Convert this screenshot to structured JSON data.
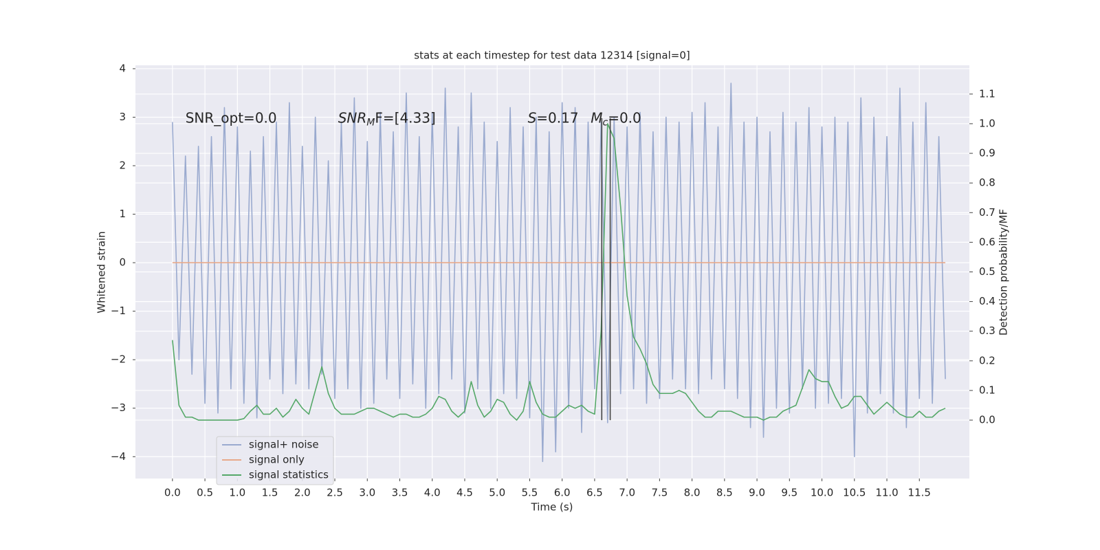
{
  "chart_data": {
    "type": "line",
    "title": "stats at each timestep for test data 12314 [signal=0]",
    "x_label": "Time (s)",
    "y_label": "Whitened strain",
    "y2_label": "Detection probability/MF",
    "grid": true,
    "legend": "lower left",
    "xlim": [
      -0.57,
      12.27
    ],
    "ylim": [
      -4.45,
      4.07
    ],
    "y2lim": [
      -0.197,
      1.197
    ],
    "xticks": [
      {
        "value": 0,
        "label": "0.0"
      },
      {
        "value": 0.5,
        "label": "0.5"
      },
      {
        "value": 1,
        "label": "1.0"
      },
      {
        "value": 1.5,
        "label": "1.5"
      },
      {
        "value": 2,
        "label": "2.0"
      },
      {
        "value": 2.5,
        "label": "2.5"
      },
      {
        "value": 3,
        "label": "3.0"
      },
      {
        "value": 3.5,
        "label": "3.5"
      },
      {
        "value": 4,
        "label": "4.0"
      },
      {
        "value": 4.5,
        "label": "4.5"
      },
      {
        "value": 5,
        "label": "5.0"
      },
      {
        "value": 5.5,
        "label": "5.5"
      },
      {
        "value": 6,
        "label": "6.0"
      },
      {
        "value": 6.5,
        "label": "6.5"
      },
      {
        "value": 7,
        "label": "7.0"
      },
      {
        "value": 7.5,
        "label": "7.5"
      },
      {
        "value": 8,
        "label": "8.0"
      },
      {
        "value": 8.5,
        "label": "8.5"
      },
      {
        "value": 9,
        "label": "9.0"
      },
      {
        "value": 9.5,
        "label": "9.5"
      },
      {
        "value": 10,
        "label": "10.0"
      },
      {
        "value": 10.5,
        "label": "10.5"
      },
      {
        "value": 11,
        "label": "11.0"
      },
      {
        "value": 11.5,
        "label": "11.5"
      }
    ],
    "yticks": [
      {
        "value": -4,
        "label": "−4"
      },
      {
        "value": -3,
        "label": "−3"
      },
      {
        "value": -2,
        "label": "−2"
      },
      {
        "value": -1,
        "label": "−1"
      },
      0,
      1,
      2,
      3,
      4
    ],
    "y2ticks": [
      {
        "value": 0,
        "label": "0.0"
      },
      {
        "value": 0.1,
        "label": "0.1"
      },
      {
        "value": 0.2,
        "label": "0.2"
      },
      {
        "value": 0.3,
        "label": "0.3"
      },
      {
        "value": 0.4,
        "label": "0.4"
      },
      {
        "value": 0.5,
        "label": "0.5"
      },
      {
        "value": 0.6,
        "label": "0.6"
      },
      {
        "value": 0.7,
        "label": "0.7"
      },
      {
        "value": 0.8,
        "label": "0.8"
      },
      {
        "value": 0.9,
        "label": "0.9"
      },
      {
        "value": 1.0,
        "label": "1.0"
      },
      {
        "value": 1.1,
        "label": "1.1"
      }
    ],
    "x": [
      0,
      0.1,
      0.2,
      0.3,
      0.4,
      0.5,
      0.6,
      0.7,
      0.8,
      0.9,
      1,
      1.1,
      1.2,
      1.3,
      1.4,
      1.5,
      1.6,
      1.7,
      1.8,
      1.9,
      2,
      2.1,
      2.2,
      2.3,
      2.4,
      2.5,
      2.6,
      2.7,
      2.8,
      2.9,
      3,
      3.1,
      3.2,
      3.3,
      3.4,
      3.5,
      3.6,
      3.7,
      3.8,
      3.9,
      4,
      4.1,
      4.2,
      4.3,
      4.4,
      4.5,
      4.6,
      4.7,
      4.8,
      4.9,
      5,
      5.1,
      5.2,
      5.3,
      5.4,
      5.5,
      5.6,
      5.7,
      5.8,
      5.9,
      6,
      6.1,
      6.2,
      6.3,
      6.4,
      6.5,
      6.6,
      6.7,
      6.8,
      6.9,
      7,
      7.1,
      7.2,
      7.3,
      7.4,
      7.5,
      7.6,
      7.7,
      7.8,
      7.9,
      8,
      8.1,
      8.2,
      8.3,
      8.4,
      8.5,
      8.6,
      8.7,
      8.8,
      8.9,
      9,
      9.1,
      9.2,
      9.3,
      9.4,
      9.5,
      9.6,
      9.7,
      9.8,
      9.9,
      10,
      10.1,
      10.2,
      10.3,
      10.4,
      10.5,
      10.6,
      10.7,
      10.8,
      10.9,
      11,
      11.1,
      11.2,
      11.3,
      11.4,
      11.5,
      11.6,
      11.7,
      11.8,
      11.9
    ],
    "series": [
      {
        "name": "signal+ noise",
        "color": "#9aaacf",
        "axis": "y",
        "values": [
          2.9,
          -2.0,
          2.2,
          -2.3,
          2.4,
          -2.9,
          2.6,
          -3.1,
          3.2,
          -2.6,
          2.8,
          -2.9,
          2.3,
          -3.2,
          2.6,
          -2.4,
          2.9,
          -2.7,
          3.3,
          -2.5,
          2.4,
          -2.6,
          3.0,
          -2.3,
          2.1,
          -2.8,
          2.9,
          -2.6,
          3.4,
          -3.0,
          2.5,
          -2.9,
          3.1,
          -2.4,
          2.7,
          -2.8,
          3.5,
          -2.5,
          2.6,
          -3.0,
          3.1,
          -2.7,
          3.6,
          -2.4,
          2.8,
          -3.1,
          3.5,
          -2.6,
          2.9,
          -3.0,
          2.5,
          -2.7,
          3.2,
          -2.8,
          2.8,
          -3.2,
          3.0,
          -4.1,
          2.7,
          -3.9,
          3.3,
          -3.0,
          3.2,
          -3.5,
          2.9,
          -2.6,
          2.9,
          -3.3,
          3.0,
          -2.7,
          2.8,
          -2.6,
          3.1,
          -2.9,
          2.7,
          -2.8,
          3.0,
          -2.4,
          2.9,
          -2.6,
          3.1,
          -2.7,
          3.3,
          -2.4,
          2.8,
          -2.6,
          3.7,
          -2.8,
          2.9,
          -3.4,
          3.0,
          -3.6,
          2.7,
          -3.0,
          3.1,
          -3.1,
          2.9,
          -2.6,
          3.2,
          -3.0,
          2.8,
          -2.9,
          3.0,
          -2.8,
          2.9,
          -4.0,
          3.4,
          -3.1,
          3.0,
          -2.7,
          2.6,
          -3.1,
          3.6,
          -3.4,
          2.9,
          -2.8,
          3.3,
          -2.9,
          2.6,
          -2.4
        ]
      },
      {
        "name": "signal only",
        "color": "#e8a98a",
        "axis": "y",
        "values": [
          0,
          0,
          0,
          0,
          0,
          0,
          0,
          0,
          0,
          0,
          0,
          0,
          0,
          0,
          0,
          0,
          0,
          0,
          0,
          0,
          0,
          0,
          0,
          0,
          0,
          0,
          0,
          0,
          0,
          0,
          0,
          0,
          0,
          0,
          0,
          0,
          0,
          0,
          0,
          0,
          0,
          0,
          0,
          0,
          0,
          0,
          0,
          0,
          0,
          0,
          0,
          0,
          0,
          0,
          0,
          0,
          0,
          0,
          0,
          0,
          0,
          0,
          0,
          0,
          0,
          0,
          0,
          0,
          0,
          0,
          0,
          0,
          0,
          0,
          0,
          0,
          0,
          0,
          0,
          0,
          0,
          0,
          0,
          0,
          0,
          0,
          0,
          0,
          0,
          0,
          0,
          0,
          0,
          0,
          0,
          0,
          0,
          0,
          0,
          0,
          0,
          0,
          0,
          0,
          0,
          0,
          0,
          0,
          0,
          0,
          0,
          0,
          0,
          0,
          0,
          0,
          0,
          0,
          0,
          0
        ]
      },
      {
        "name": "signal statistics",
        "color": "#55a868",
        "axis": "y2",
        "values": [
          0.27,
          0.05,
          0.01,
          0.01,
          0.0,
          0.0,
          0.0,
          0.0,
          0.0,
          0.0,
          0.0,
          0.005,
          0.03,
          0.05,
          0.02,
          0.02,
          0.04,
          0.01,
          0.03,
          0.07,
          0.04,
          0.02,
          0.1,
          0.18,
          0.09,
          0.04,
          0.02,
          0.02,
          0.02,
          0.03,
          0.04,
          0.04,
          0.03,
          0.02,
          0.01,
          0.02,
          0.02,
          0.01,
          0.01,
          0.02,
          0.04,
          0.08,
          0.07,
          0.03,
          0.01,
          0.03,
          0.13,
          0.05,
          0.01,
          0.03,
          0.07,
          0.06,
          0.02,
          0.0,
          0.03,
          0.13,
          0.06,
          0.02,
          0.01,
          0.01,
          0.03,
          0.05,
          0.04,
          0.05,
          0.03,
          0.02,
          0.3,
          1.0,
          0.95,
          0.72,
          0.42,
          0.28,
          0.24,
          0.19,
          0.12,
          0.09,
          0.09,
          0.09,
          0.1,
          0.09,
          0.06,
          0.03,
          0.01,
          0.01,
          0.03,
          0.03,
          0.03,
          0.02,
          0.01,
          0.01,
          0.01,
          0.0,
          0.01,
          0.01,
          0.03,
          0.04,
          0.05,
          0.11,
          0.17,
          0.14,
          0.13,
          0.13,
          0.08,
          0.04,
          0.05,
          0.08,
          0.08,
          0.05,
          0.02,
          0.04,
          0.06,
          0.04,
          0.02,
          0.01,
          0.01,
          0.03,
          0.01,
          0.01,
          0.03,
          0.04
        ]
      }
    ],
    "vlines": [
      {
        "x": 6.61,
        "ymin": 0,
        "ymax": 1.0,
        "color": "#444444"
      },
      {
        "x": 6.74,
        "ymin": 0,
        "ymax": 1.0,
        "color": "#444444"
      }
    ],
    "annotations": [
      {
        "x": 0.2,
        "y": 2.97,
        "parts": [
          {
            "text": "SNR_opt=0.0"
          }
        ]
      },
      {
        "x": 2.55,
        "y": 2.97,
        "parts": [
          {
            "text": "SNR",
            "italic": true
          },
          {
            "text": "M",
            "italic": true,
            "sub": true
          },
          {
            "text": "F=[4.33]"
          }
        ]
      },
      {
        "x": 5.47,
        "y": 2.97,
        "parts": [
          {
            "text": "S",
            "italic": true
          },
          {
            "text": "=0.17"
          }
        ]
      },
      {
        "x": 6.44,
        "y": 2.97,
        "parts": [
          {
            "text": "M",
            "italic": true
          },
          {
            "text": "c",
            "italic": true,
            "sub": true
          },
          {
            "text": "=0.0"
          }
        ]
      }
    ]
  }
}
